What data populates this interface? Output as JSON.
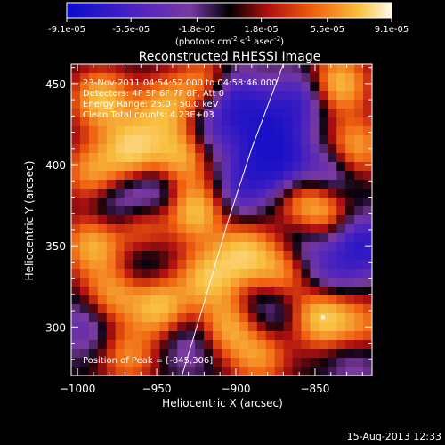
{
  "colorbar": {
    "tick_labels": [
      "-9.1e-05",
      "-5.5e-05",
      "-1.8e-05",
      "1.8e-05",
      "5.5e-05",
      "9.1e-05"
    ],
    "tick_values": [
      -9.1e-05,
      -5.5e-05,
      -1.8e-05,
      1.8e-05,
      5.5e-05,
      9.1e-05
    ],
    "range": [
      -9.1e-05,
      9.1e-05
    ],
    "unit_main": "(photons cm",
    "unit_sup1": "-2",
    "unit_mid": " s",
    "unit_sup2": "-1",
    "unit_end": " asec",
    "unit_sup3": "-2",
    "unit_close": ")",
    "colors": [
      "#0a0ad0",
      "#5020b8",
      "#7c38a0",
      "#000000",
      "#d01010",
      "#f07010",
      "#f8c040",
      "#fff8e0"
    ]
  },
  "chart_data": {
    "type": "heatmap",
    "title": "Reconstructed RHESSI Image",
    "xlabel": "Heliocentric X (arcsec)",
    "ylabel": "Heliocentric Y (arcsec)",
    "xlim": [
      -1004,
      -814
    ],
    "ylim": [
      270,
      462
    ],
    "x_ticks": [
      -1000,
      -950,
      -900,
      -850
    ],
    "x_tick_labels": [
      "−1000",
      "−950",
      "−900",
      "−850"
    ],
    "y_ticks": [
      300,
      350,
      400,
      450
    ],
    "y_tick_labels": [
      "300",
      "350",
      "400",
      "450"
    ],
    "annotations": [
      "23-Nov-2011 04:54:52.000 to 04:58:46.000",
      "Detectors: 4F 5F 6F 7F 8F, Att 0",
      "Energy Range: 25.0 - 50.0 keV",
      "Clean    Total counts: 4.23E+03"
    ],
    "peak_label": "Position of Peak = [-845,306]",
    "peak": [
      -845,
      306
    ],
    "limb_curve": [
      [
        -934,
        270
      ],
      [
        -920,
        315
      ],
      [
        -905,
        365
      ],
      [
        -890,
        410
      ],
      [
        -870,
        462
      ]
    ],
    "blobs": [
      {
        "x": -985,
        "y": 440,
        "v": 0.9
      },
      {
        "x": -965,
        "y": 410,
        "v": 1.0
      },
      {
        "x": -990,
        "y": 395,
        "v": 0.7
      },
      {
        "x": -945,
        "y": 435,
        "v": 0.75
      },
      {
        "x": -935,
        "y": 405,
        "v": 0.85
      },
      {
        "x": -920,
        "y": 450,
        "v": 0.6
      },
      {
        "x": -990,
        "y": 350,
        "v": 0.8
      },
      {
        "x": -960,
        "y": 360,
        "v": 0.6
      },
      {
        "x": -925,
        "y": 372,
        "v": 0.95
      },
      {
        "x": -978,
        "y": 320,
        "v": 0.7
      },
      {
        "x": -948,
        "y": 312,
        "v": 0.9
      },
      {
        "x": -918,
        "y": 330,
        "v": 0.85
      },
      {
        "x": -895,
        "y": 345,
        "v": 0.9
      },
      {
        "x": -870,
        "y": 335,
        "v": 0.7
      },
      {
        "x": -845,
        "y": 306,
        "v": 1.0
      },
      {
        "x": -820,
        "y": 300,
        "v": 0.55
      },
      {
        "x": -905,
        "y": 300,
        "v": 0.75
      },
      {
        "x": -968,
        "y": 282,
        "v": 0.6
      },
      {
        "x": -885,
        "y": 282,
        "v": 0.65
      },
      {
        "x": -845,
        "y": 370,
        "v": 0.7
      },
      {
        "x": -825,
        "y": 410,
        "v": 0.8
      },
      {
        "x": -835,
        "y": 450,
        "v": 0.9
      },
      {
        "x": -860,
        "y": 380,
        "v": 0.5
      },
      {
        "x": -880,
        "y": 420,
        "v": -1.0
      },
      {
        "x": -900,
        "y": 440,
        "v": -0.85
      },
      {
        "x": -860,
        "y": 440,
        "v": -0.7
      },
      {
        "x": -870,
        "y": 400,
        "v": -0.8
      },
      {
        "x": -840,
        "y": 395,
        "v": -0.6
      },
      {
        "x": -890,
        "y": 395,
        "v": -0.55
      },
      {
        "x": -820,
        "y": 350,
        "v": -0.9
      },
      {
        "x": -855,
        "y": 350,
        "v": -0.5
      },
      {
        "x": -840,
        "y": 330,
        "v": -0.45
      },
      {
        "x": -975,
        "y": 375,
        "v": -0.45
      },
      {
        "x": -950,
        "y": 385,
        "v": -0.5
      },
      {
        "x": -995,
        "y": 300,
        "v": -0.45
      },
      {
        "x": -930,
        "y": 290,
        "v": -0.4
      },
      {
        "x": -960,
        "y": 340,
        "v": -0.35
      },
      {
        "x": -915,
        "y": 420,
        "v": -0.45
      },
      {
        "x": -900,
        "y": 380,
        "v": -0.4
      },
      {
        "x": -880,
        "y": 310,
        "v": -0.4
      },
      {
        "x": -825,
        "y": 280,
        "v": -0.35
      }
    ]
  },
  "footer": {
    "timestamp": "15-Aug-2013 12:33"
  }
}
